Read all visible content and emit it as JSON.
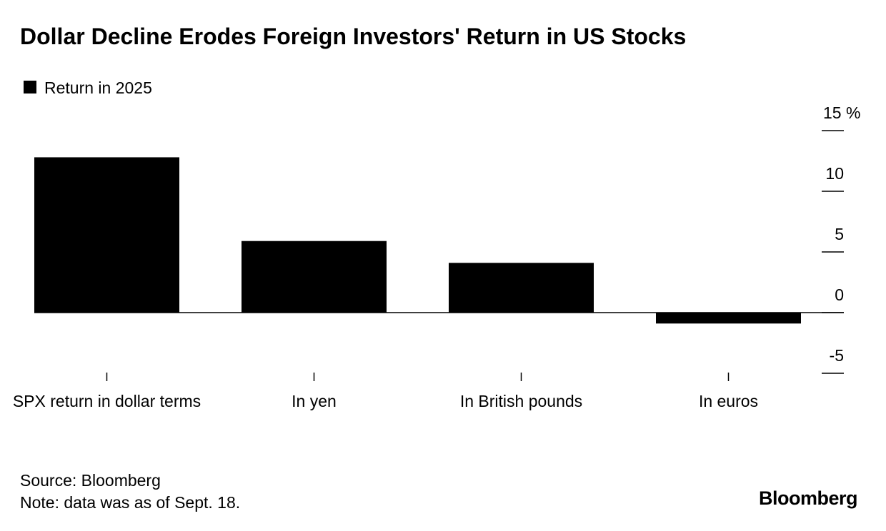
{
  "chart_data": {
    "type": "bar",
    "title": "Dollar Decline Erodes Foreign Investors' Return in US Stocks",
    "categories": [
      "SPX return in dollar terms",
      "In yen",
      "In British pounds",
      "In euros"
    ],
    "series": [
      {
        "name": "Return in 2025",
        "color": "#000000",
        "values": [
          12.8,
          5.9,
          4.1,
          -0.9
        ]
      }
    ],
    "ylim": [
      -5,
      15
    ],
    "yticks": [
      -5,
      0,
      5,
      10,
      {
        "value": 15,
        "label": "15 %"
      }
    ],
    "legend": "top-left",
    "source": "Source: Bloomberg",
    "note": "Note: data was as of Sept. 18.",
    "brand": "Bloomberg"
  }
}
